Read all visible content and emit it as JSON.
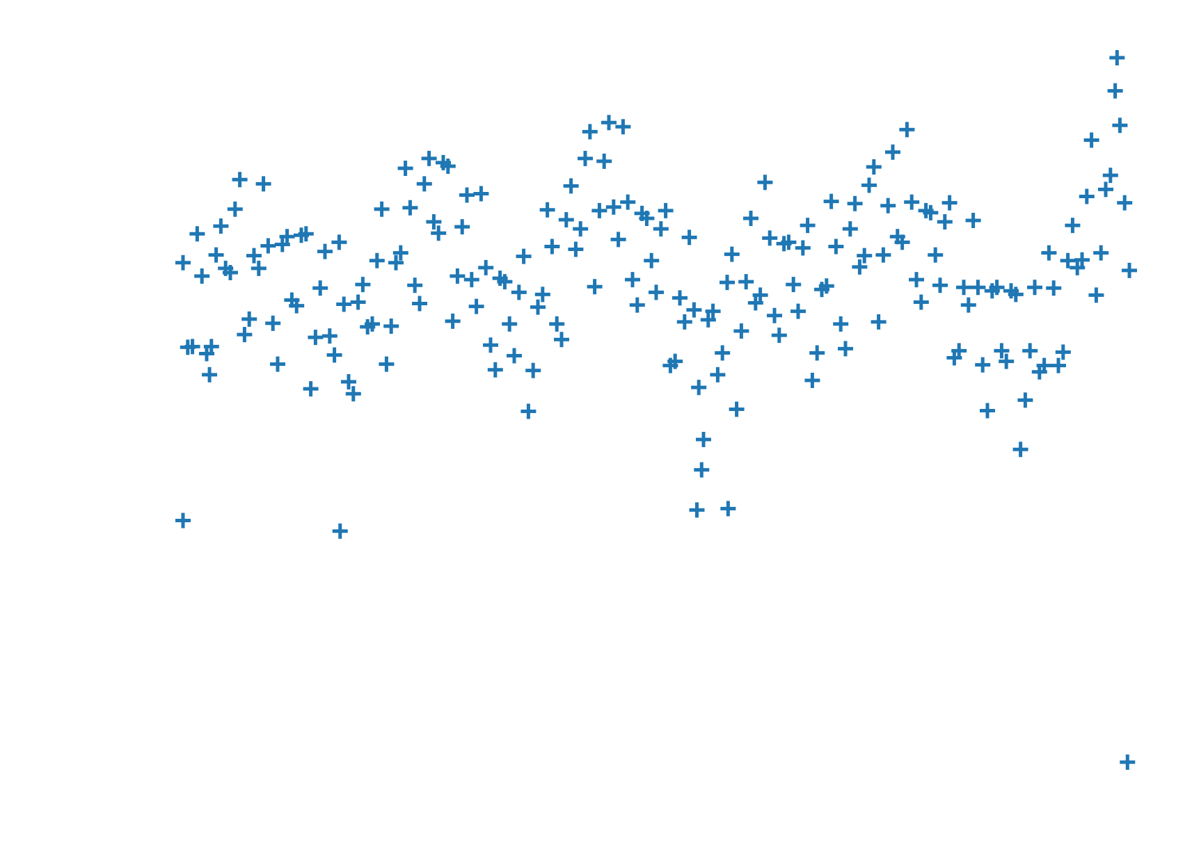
{
  "chart_data": {
    "type": "scatter",
    "marker": "+",
    "color": "#1f77b4",
    "xlim": [
      0,
      100
    ],
    "ylim": [
      0,
      100
    ],
    "series": [
      {
        "color": "#1f77b4",
        "x": [
          0,
          1,
          2,
          3,
          4,
          5,
          6,
          7,
          8,
          9,
          10,
          11,
          12,
          13,
          14,
          15,
          16,
          17,
          18,
          19,
          20,
          21,
          22,
          23,
          24,
          25,
          26,
          27,
          28,
          29,
          30,
          31,
          32,
          33,
          34,
          35,
          36,
          37,
          38,
          39,
          40,
          41,
          42,
          43,
          44,
          45,
          46,
          47,
          48,
          49,
          50,
          51,
          52,
          53,
          54,
          55,
          56,
          57,
          58,
          59,
          60,
          61,
          62,
          63,
          64,
          65,
          66,
          67,
          68,
          69,
          70,
          71,
          72,
          73,
          74,
          75,
          76,
          77,
          78,
          79,
          80,
          81,
          82,
          83,
          84,
          85,
          86,
          87,
          88,
          89,
          90,
          91,
          92,
          93,
          94,
          95,
          96,
          97,
          98,
          99,
          0.5,
          1.5,
          2.5,
          3.5,
          4.5,
          5.5,
          6.5,
          7.5,
          8.5,
          9.5,
          10.5,
          11.5,
          12.5,
          13.5,
          14.5,
          15.5,
          16.5,
          17.5,
          18.5,
          19.5,
          20.5,
          21.5,
          22.5,
          23.5,
          24.5,
          25.5,
          26.5,
          27.5,
          28.5,
          29.5,
          30.5,
          31.5,
          32.5,
          33.5,
          34.5,
          35.5,
          36.5,
          37.5,
          38.5,
          39.5,
          40.5,
          41.5,
          42.5,
          43.5,
          44.5,
          45.5,
          46.5,
          47.5,
          48.5,
          49.5,
          50.5,
          51.5,
          52.5,
          53.5,
          54.5,
          55.5,
          56.5,
          57.5,
          58.5,
          59.5,
          60.5,
          61.5,
          62.5,
          63.5,
          64.5,
          65.5,
          66.5,
          67.5,
          68.5,
          69.5,
          70.5,
          71.5,
          72.5,
          73.5,
          74.5,
          75.5,
          76.5,
          77.5,
          78.5,
          79.5,
          80.5,
          81.5,
          82.5,
          83.5,
          84.5,
          85.5,
          86.5,
          87.5,
          88.5,
          89.5,
          90.5,
          91.5,
          92.5,
          93.5,
          94.5,
          95.5,
          96.5,
          97.5,
          98.5,
          99.5,
          0,
          16.6,
          98.7,
          99.8,
          54.3,
          57.6,
          54.8,
          2.8,
          100
        ],
        "values": [
          70.9,
          59.0,
          69.0,
          59.0,
          76.1,
          69.5,
          82.7,
          62.9,
          70.1,
          73.3,
          56.5,
          74.6,
          64.8,
          75.0,
          60.3,
          72.5,
          57.8,
          65.0,
          52.3,
          67.8,
          62.2,
          78.5,
          61.9,
          72.3,
          78.7,
          65.1,
          85.7,
          75.1,
          84.6,
          69.0,
          80.5,
          64.7,
          70.2,
          55.7,
          68.2,
          57.7,
          71.8,
          55.6,
          66.4,
          73.2,
          60.0,
          81.8,
          75.7,
          89.5,
          78.3,
          90.8,
          74.2,
          79.5,
          64.9,
          77.2,
          66.7,
          78.3,
          56.9,
          62.5,
          64.2,
          45.8,
          64.0,
          58.1,
          72.1,
          61.2,
          77.2,
          66.3,
          74.4,
          60.6,
          73.8,
          64.0,
          76.2,
          58.1,
          67.6,
          73.2,
          58.7,
          79.3,
          71.9,
          84.5,
          72.0,
          86.6,
          73.8,
          79.5,
          65.3,
          78.0,
          67.7,
          79.4,
          58.4,
          64.9,
          67.4,
          49.9,
          67.4,
          56.9,
          66.4,
          51.4,
          67.4,
          56.3,
          67.3,
          58.2,
          76.2,
          71.3,
          88.3,
          72.3,
          83.3,
          90.4,
          58.9,
          75.0,
          58.0,
          72.0,
          70.1,
          78.5,
          60.7,
          71.9,
          82.1,
          62.3,
          73.5,
          65.6,
          74.8,
          53.0,
          67.3,
          60.5,
          73.8,
          54.0,
          65.3,
          61.8,
          71.2,
          56.5,
          70.9,
          84.3,
          67.7,
          82.1,
          76.7,
          85.1,
          62.6,
          76.0,
          68.5,
          80.7,
          59.2,
          68.7,
          62.2,
          66.7,
          49.8,
          64.6,
          78.4,
          62.2,
          77.0,
          72.8,
          85.7,
          67.5,
          85.3,
          78.8,
          90.2,
          68.5,
          77.9,
          71.2,
          75.7,
          56.3,
          65.9,
          74.5,
          53.2,
          62.8,
          55.0,
          68.1,
          50.1,
          68.2,
          65.2,
          82.3,
          63.4,
          73.6,
          67.8,
          73.0,
          54.2,
          67.1,
          79.6,
          62.2,
          75.7,
          70.3,
          81.9,
          62.5,
          79.0,
          74.6,
          89.8,
          68.5,
          78.3,
          72.0,
          76.7,
          57.4,
          67.4,
          76.9,
          56.4,
          66.9,
          58.4,
          66.9,
          44.4,
          58.4,
          55.4,
          72.3,
          56.3,
          71.2,
          70.2,
          80.3,
          66.3,
          81.3,
          95.3,
          79.4,
          34.3,
          32.8,
          100,
          0,
          35.8,
          36,
          41.5,
          55,
          69.8
        ]
      }
    ]
  }
}
